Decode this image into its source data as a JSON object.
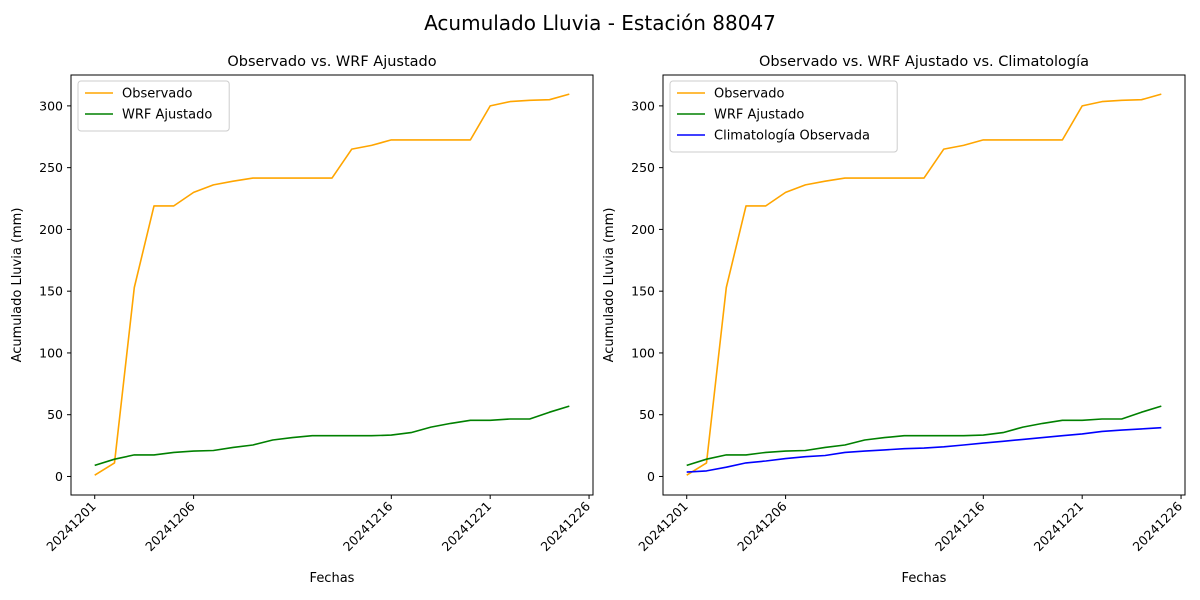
{
  "figure": {
    "title": "Acumulado Lluvia - Estación 88047"
  },
  "chart_data": [
    {
      "type": "line",
      "title": "Observado vs. WRF Ajustado",
      "xlabel": "Fechas",
      "ylabel": "Acumulado Lluvia (mm)",
      "x": [
        "20241201",
        "20241202",
        "20241203",
        "20241204",
        "20241205",
        "20241206",
        "20241207",
        "20241208",
        "20241209",
        "20241210",
        "20241211",
        "20241212",
        "20241213",
        "20241214",
        "20241215",
        "20241216",
        "20241217",
        "20241218",
        "20241219",
        "20241220",
        "20241221",
        "20241222",
        "20241223",
        "20241224",
        "20241225"
      ],
      "xticks": [
        "20241201",
        "20241206",
        "20241216",
        "20241221",
        "20241226"
      ],
      "ylim": [
        -15,
        325
      ],
      "yticks": [
        0,
        50,
        100,
        150,
        200,
        250,
        300
      ],
      "legend": "top-left",
      "grid": false,
      "series": [
        {
          "name": "Observado",
          "color": "#ffa500",
          "values": [
            1,
            11,
            153,
            219,
            219,
            230,
            236,
            239,
            241.5,
            241.5,
            241.5,
            241.5,
            241.5,
            265,
            268,
            272.5,
            272.5,
            272.5,
            272.5,
            272.5,
            300,
            303.5,
            304.5,
            305,
            309.5
          ]
        },
        {
          "name": "WRF Ajustado",
          "color": "#008000",
          "values": [
            9,
            14,
            17.5,
            17.5,
            19.5,
            20.5,
            21,
            23.5,
            25.5,
            29.5,
            31.5,
            33,
            33,
            33,
            33,
            33.5,
            35.5,
            40,
            43,
            45.5,
            45.5,
            46.5,
            46.5,
            52,
            57
          ]
        }
      ]
    },
    {
      "type": "line",
      "title": "Observado vs. WRF Ajustado vs. Climatología",
      "xlabel": "Fechas",
      "ylabel": "Acumulado Lluvia (mm)",
      "x": [
        "20241201",
        "20241202",
        "20241203",
        "20241204",
        "20241205",
        "20241206",
        "20241207",
        "20241208",
        "20241209",
        "20241210",
        "20241211",
        "20241212",
        "20241213",
        "20241214",
        "20241215",
        "20241216",
        "20241217",
        "20241218",
        "20241219",
        "20241220",
        "20241221",
        "20241222",
        "20241223",
        "20241224",
        "20241225"
      ],
      "xticks": [
        "20241201",
        "20241206",
        "20241216",
        "20241221",
        "20241226"
      ],
      "ylim": [
        -15,
        325
      ],
      "yticks": [
        0,
        50,
        100,
        150,
        200,
        250,
        300
      ],
      "legend": "top-left",
      "grid": false,
      "series": [
        {
          "name": "Observado",
          "color": "#ffa500",
          "values": [
            1,
            11,
            153,
            219,
            219,
            230,
            236,
            239,
            241.5,
            241.5,
            241.5,
            241.5,
            241.5,
            265,
            268,
            272.5,
            272.5,
            272.5,
            272.5,
            272.5,
            300,
            303.5,
            304.5,
            305,
            309.5
          ]
        },
        {
          "name": "WRF Ajustado",
          "color": "#008000",
          "values": [
            9,
            14,
            17.5,
            17.5,
            19.5,
            20.5,
            21,
            23.5,
            25.5,
            29.5,
            31.5,
            33,
            33,
            33,
            33,
            33.5,
            35.5,
            40,
            43,
            45.5,
            45.5,
            46.5,
            46.5,
            52,
            57
          ]
        },
        {
          "name": "Climatología Observada",
          "color": "#0000ff",
          "values": [
            3.5,
            4.5,
            7.5,
            11,
            12.5,
            14.5,
            16,
            17,
            19.5,
            20.5,
            21.5,
            22.5,
            23,
            24,
            25.5,
            27,
            28.5,
            30,
            31.5,
            33,
            34.5,
            36.5,
            37.5,
            38.5,
            39.5
          ]
        }
      ]
    }
  ]
}
